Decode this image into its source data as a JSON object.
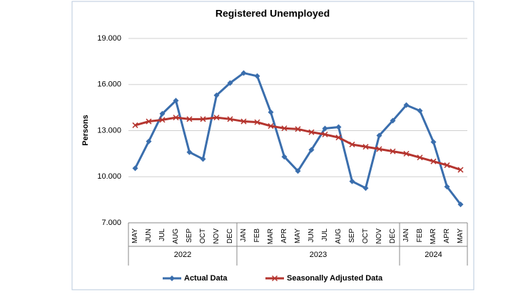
{
  "chart_data": {
    "type": "line",
    "title": "Registered Unemployed",
    "y_label": "Persons",
    "categories": [
      "MAY",
      "JUN",
      "JUL",
      "AUG",
      "SEP",
      "OCT",
      "NOV",
      "DEC",
      "JAN",
      "FEB",
      "MAR",
      "APR",
      "MAY",
      "JUN",
      "JUL",
      "AUG",
      "SEP",
      "OCT",
      "NOV",
      "DEC",
      "JAN",
      "FEB",
      "MAR",
      "APR",
      "MAY"
    ],
    "category_years": [
      "2022",
      "2022",
      "2022",
      "2022",
      "2022",
      "2022",
      "2022",
      "2022",
      "2023",
      "2023",
      "2023",
      "2023",
      "2023",
      "2023",
      "2023",
      "2023",
      "2023",
      "2023",
      "2023",
      "2023",
      "2024",
      "2024",
      "2024",
      "2024",
      "2024"
    ],
    "series": [
      {
        "name": "Actual Data",
        "color": "#3a6ead",
        "marker": "diamond",
        "values": [
          10550,
          12300,
          14100,
          14950,
          11600,
          11150,
          15300,
          16100,
          16750,
          16550,
          14200,
          11300,
          10370,
          11750,
          13140,
          13230,
          9700,
          9260,
          12680,
          13650,
          14660,
          14290,
          12260,
          9350,
          8200
        ]
      },
      {
        "name": "Seasonally Adjusted Data",
        "color": "#b5352f",
        "marker": "x",
        "values": [
          13350,
          13600,
          13700,
          13850,
          13750,
          13750,
          13850,
          13750,
          13600,
          13550,
          13300,
          13150,
          13100,
          12900,
          12750,
          12550,
          12100,
          11950,
          11800,
          11650,
          11500,
          11250,
          11000,
          10750,
          10450
        ]
      }
    ],
    "ylim": [
      7000,
      19000
    ],
    "yticks": [
      {
        "value": 7000,
        "label": "7.000"
      },
      {
        "value": 10000,
        "label": "10.000"
      },
      {
        "value": 13000,
        "label": "13.000"
      },
      {
        "value": 16000,
        "label": "16.000"
      },
      {
        "value": 19000,
        "label": "19.000"
      }
    ],
    "grid": true,
    "legend": "bottom"
  }
}
